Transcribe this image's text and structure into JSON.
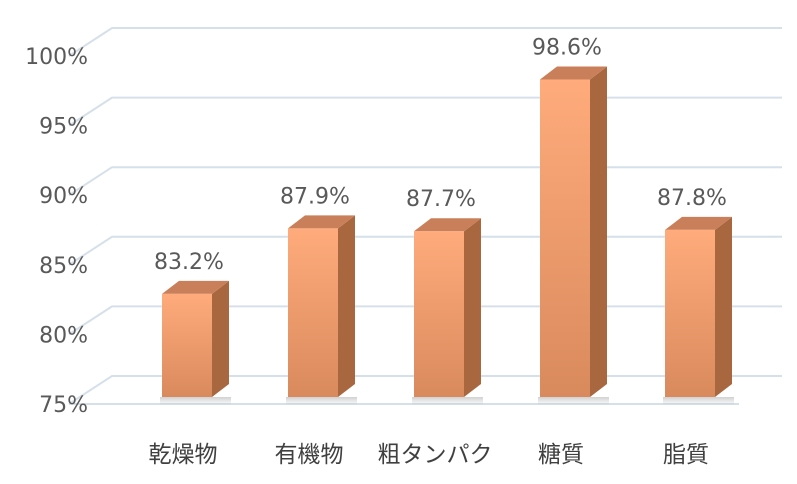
{
  "chart_data": {
    "type": "bar",
    "categories": [
      "乾燥物",
      "有機物",
      "粗タンパク",
      "糖質",
      "脂質"
    ],
    "values": [
      83.2,
      87.9,
      87.7,
      98.6,
      87.8
    ],
    "data_labels": [
      "83.2%",
      "87.9%",
      "87.7%",
      "98.6%",
      "87.8%"
    ],
    "y_ticks": [
      75,
      80,
      85,
      90,
      95,
      100
    ],
    "y_tick_labels": [
      "75%",
      "80%",
      "85%",
      "90%",
      "95%",
      "100%"
    ],
    "ylim": [
      75,
      100
    ],
    "grid": true,
    "legend": "none",
    "style": "3d-column",
    "colors": {
      "bar_front_top": "#ffab7c",
      "bar_front_bottom": "#d98a5d",
      "bar_side": "#a9673f",
      "bar_top": "#c9805a",
      "gridline": "#d6e0ea",
      "tick_text": "#595959"
    }
  }
}
